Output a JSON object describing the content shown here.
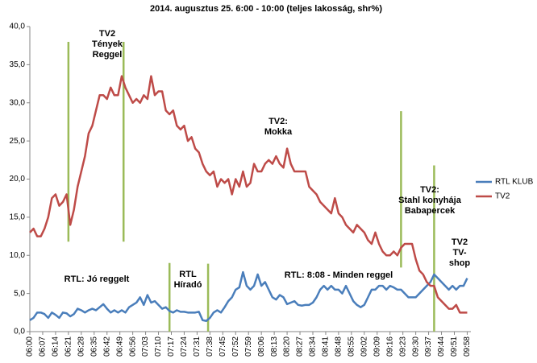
{
  "chart_data": {
    "type": "line",
    "title": "2014. augusztus 25. 6:00 - 10:00 (teljes lakosság, shr%)",
    "x": [
      0,
      2,
      4,
      6,
      8,
      10,
      12,
      14,
      16,
      18,
      20,
      22,
      24,
      26,
      28,
      30,
      32,
      34,
      36,
      38,
      40,
      42,
      44,
      46,
      48,
      50,
      52,
      54,
      56,
      58,
      60,
      62,
      64,
      66,
      68,
      70,
      72,
      74,
      76,
      78,
      80,
      82,
      84,
      86,
      88,
      90,
      92,
      94,
      96,
      98,
      100,
      102,
      104,
      106,
      108,
      110,
      112,
      114,
      116,
      118,
      120,
      122,
      124,
      126,
      128,
      130,
      132,
      134,
      136,
      138,
      140,
      142,
      144,
      146,
      148,
      150,
      152,
      154,
      156,
      158,
      160,
      162,
      164,
      166,
      168,
      170,
      172,
      174,
      176,
      178,
      180,
      182,
      184,
      186,
      188,
      190,
      192,
      194,
      196,
      198,
      200,
      202,
      204,
      206,
      208,
      210,
      212,
      214,
      216,
      218,
      220,
      222,
      224,
      226,
      228,
      230,
      232,
      234,
      236,
      238
    ],
    "xlim": [
      0,
      240
    ],
    "xticks": [
      {
        "value": 0,
        "label": "06:00"
      },
      {
        "value": 7,
        "label": "06:07"
      },
      {
        "value": 14,
        "label": "06:14"
      },
      {
        "value": 21,
        "label": "06:21"
      },
      {
        "value": 28,
        "label": "06:28"
      },
      {
        "value": 35,
        "label": "06:35"
      },
      {
        "value": 42,
        "label": "06:42"
      },
      {
        "value": 49,
        "label": "06:49"
      },
      {
        "value": 56,
        "label": "06:56"
      },
      {
        "value": 63,
        "label": "07:03"
      },
      {
        "value": 70,
        "label": "07:10"
      },
      {
        "value": 77,
        "label": "07:17"
      },
      {
        "value": 84,
        "label": "07:24"
      },
      {
        "value": 91,
        "label": "07:31"
      },
      {
        "value": 98,
        "label": "07:38"
      },
      {
        "value": 105,
        "label": "07:45"
      },
      {
        "value": 112,
        "label": "07:52"
      },
      {
        "value": 119,
        "label": "07:59"
      },
      {
        "value": 126,
        "label": "08:06"
      },
      {
        "value": 133,
        "label": "08:13"
      },
      {
        "value": 140,
        "label": "08:20"
      },
      {
        "value": 147,
        "label": "08:27"
      },
      {
        "value": 154,
        "label": "08:34"
      },
      {
        "value": 161,
        "label": "08:41"
      },
      {
        "value": 168,
        "label": "08:48"
      },
      {
        "value": 175,
        "label": "08:55"
      },
      {
        "value": 182,
        "label": "09:02"
      },
      {
        "value": 189,
        "label": "09:09"
      },
      {
        "value": 196,
        "label": "09:16"
      },
      {
        "value": 203,
        "label": "09:23"
      },
      {
        "value": 210,
        "label": "09:30"
      },
      {
        "value": 217,
        "label": "09:37"
      },
      {
        "value": 224,
        "label": "09:44"
      },
      {
        "value": 231,
        "label": "09:51"
      },
      {
        "value": 238,
        "label": "09:58"
      }
    ],
    "ylim": [
      0,
      40
    ],
    "yticks": [
      {
        "value": 0,
        "label": "0,0"
      },
      {
        "value": 5,
        "label": "5,0"
      },
      {
        "value": 10,
        "label": "10,0"
      },
      {
        "value": 15,
        "label": "15,0"
      },
      {
        "value": 20,
        "label": "20,0"
      },
      {
        "value": 25,
        "label": "25,0"
      },
      {
        "value": 30,
        "label": "30,0"
      },
      {
        "value": 35,
        "label": "35,0"
      },
      {
        "value": 40,
        "label": "40,0"
      }
    ],
    "grid": false,
    "legend": "right",
    "series": [
      {
        "name": "RTL KLUB",
        "color": "#4a7ebb",
        "values": [
          1.5,
          1.8,
          2.5,
          2.5,
          2.3,
          1.8,
          2.5,
          2.2,
          1.8,
          2.5,
          2.4,
          2,
          2.3,
          3,
          2.8,
          2.5,
          2.8,
          3,
          2.8,
          3.2,
          3.6,
          3,
          2.5,
          2.8,
          2.5,
          2.8,
          2.5,
          3.2,
          3.5,
          3.8,
          4.5,
          3.5,
          4.8,
          3.8,
          4,
          3.5,
          3,
          3.2,
          2.7,
          2.5,
          2.8,
          2.6,
          2.6,
          2.5,
          2.5,
          2.5,
          2.6,
          1.5,
          1.4,
          1.8,
          2.5,
          2.8,
          2.5,
          3.2,
          4,
          4.5,
          5.5,
          5.8,
          7.8,
          6,
          5.5,
          6,
          7.5,
          6,
          6.5,
          5.5,
          4.5,
          4.2,
          4.8,
          4.5,
          3.6,
          3.8,
          4,
          3.5,
          3.4,
          3.5,
          3.5,
          3.8,
          4.5,
          5.5,
          6,
          5.5,
          6,
          5.5,
          5.5,
          5,
          6,
          5,
          4,
          3.5,
          3.2,
          3.5,
          4.5,
          5.5,
          5.5,
          6,
          6,
          5.5,
          6,
          5.8,
          5.5,
          5.5,
          5,
          4.5,
          4.5,
          4.5,
          5,
          5.5,
          6,
          6.5,
          7.5,
          7,
          6.5,
          6,
          5.5,
          6,
          5.5,
          6,
          6,
          7
        ]
      },
      {
        "name": "TV2",
        "color": "#be4b48",
        "values": [
          13,
          13.5,
          12.5,
          12.5,
          13.5,
          15,
          17.5,
          18,
          16.5,
          17,
          18,
          14,
          16,
          19,
          21,
          23,
          26,
          27,
          29,
          31,
          31,
          30.5,
          32,
          31,
          31,
          33.5,
          32,
          31,
          30,
          30.5,
          30,
          31,
          30.5,
          33.5,
          31,
          31.5,
          31.5,
          29,
          28.5,
          29,
          27,
          26.5,
          27,
          25,
          25.5,
          24,
          23.5,
          22,
          21,
          20.5,
          21,
          19,
          20,
          19.5,
          20,
          18,
          20,
          19,
          21,
          19,
          19.5,
          22,
          21,
          21,
          22,
          22.5,
          22,
          23,
          22,
          21.5,
          24,
          22,
          21,
          21,
          21,
          21,
          19,
          18.5,
          18,
          17,
          16.5,
          16,
          15.5,
          17.5,
          15.5,
          15,
          14,
          13.5,
          13,
          14,
          13.5,
          13,
          12,
          11.5,
          13,
          11.5,
          10.5,
          10,
          10,
          10.5,
          10,
          11,
          11.5,
          11.5,
          11.5,
          9.5,
          8,
          7.5,
          6.5,
          6,
          6,
          4.5,
          4,
          3.5,
          3,
          3,
          3.5,
          2.5,
          2.5,
          2.5
        ]
      }
    ],
    "markers_color": "#9bbb59",
    "markers": [
      {
        "x": 21,
        "from": 11.8,
        "to": 38
      },
      {
        "x": 51,
        "from": 11.8,
        "to": 38
      },
      {
        "x": 76,
        "from": 0,
        "to": 9
      },
      {
        "x": 97,
        "from": 0,
        "to": 8.9
      },
      {
        "x": 202,
        "from": 8.4,
        "to": 28.9
      },
      {
        "x": 220,
        "from": 0,
        "to": 21.8
      }
    ],
    "annotations": [
      [
        "TV2",
        "Tények",
        "Reggel"
      ],
      [
        "TV2:",
        "Mokka"
      ],
      [
        "TV2:",
        "Stahl konyhája",
        "Babapercek"
      ],
      [
        "TV2",
        "TV-",
        "shop"
      ],
      [
        "RTL: Jó reggelt"
      ],
      [
        "RTL",
        "Híradó"
      ],
      [
        "RTL: 8:08 - Minden reggel"
      ]
    ]
  }
}
